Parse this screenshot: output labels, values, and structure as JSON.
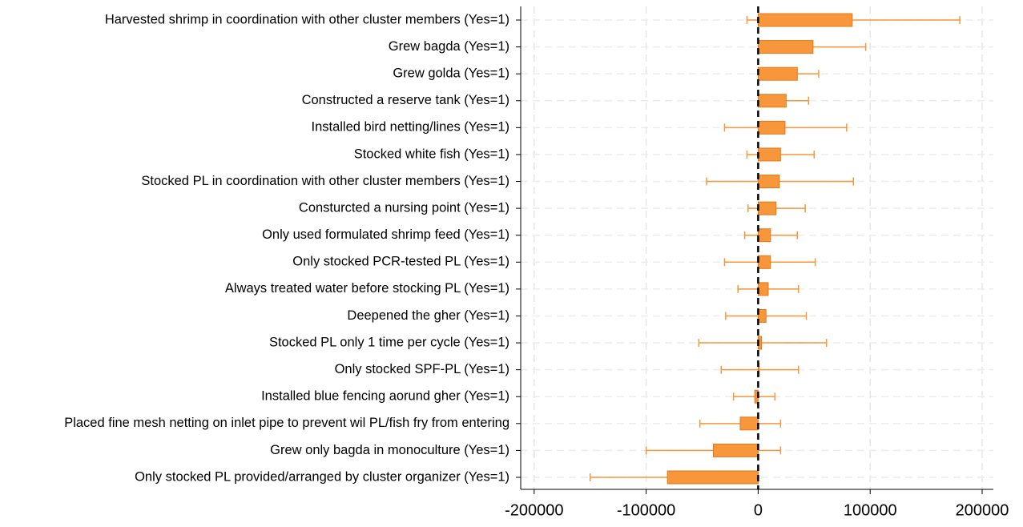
{
  "chart_data": {
    "type": "bar",
    "orientation": "horizontal",
    "categories": [
      "Harvested shrimp in coordination with other cluster members (Yes=1)",
      "Grew bagda (Yes=1)",
      "Grew golda (Yes=1)",
      "Constructed a reserve tank (Yes=1)",
      "Installed bird netting/lines (Yes=1)",
      "Stocked white fish (Yes=1)",
      "Stocked PL in coordination with other cluster members (Yes=1)",
      "Consturcted a nursing point (Yes=1)",
      "Only used formulated shrimp feed (Yes=1)",
      "Only stocked PCR-tested PL (Yes=1)",
      "Always treated water before stocking PL (Yes=1)",
      "Deepened the gher (Yes=1)",
      "Stocked PL only 1 time per cycle (Yes=1)",
      "Only stocked SPF-PL (Yes=1)",
      "Installed blue fencing aorund gher (Yes=1)",
      "Placed fine mesh netting on inlet pipe to prevent wil PL/fish fry from entering",
      "Grew only bagda in monoculture (Yes=1)",
      "Only stocked PL provided/arranged by cluster organizer (Yes=1)"
    ],
    "values": [
      84000,
      49000,
      35000,
      25000,
      24000,
      20000,
      19000,
      16000,
      11000,
      11000,
      9000,
      7000,
      3000,
      1000,
      -3000,
      -16000,
      -40000,
      -81000
    ],
    "lower": [
      -10000,
      3000,
      16000,
      4000,
      -30000,
      -10000,
      -46000,
      -9000,
      -12000,
      -30000,
      -18000,
      -29000,
      -53000,
      -33000,
      -22000,
      -52000,
      -100000,
      -150000
    ],
    "upper": [
      180000,
      96000,
      54000,
      45000,
      79000,
      50000,
      85000,
      42000,
      35000,
      51000,
      36000,
      43000,
      61000,
      36000,
      15000,
      20000,
      20000,
      -13000
    ],
    "color": "#f7963a",
    "xlim": [
      -212000,
      210000
    ],
    "xticks": [
      -200000,
      -100000,
      0,
      100000,
      200000
    ],
    "grid": true
  }
}
